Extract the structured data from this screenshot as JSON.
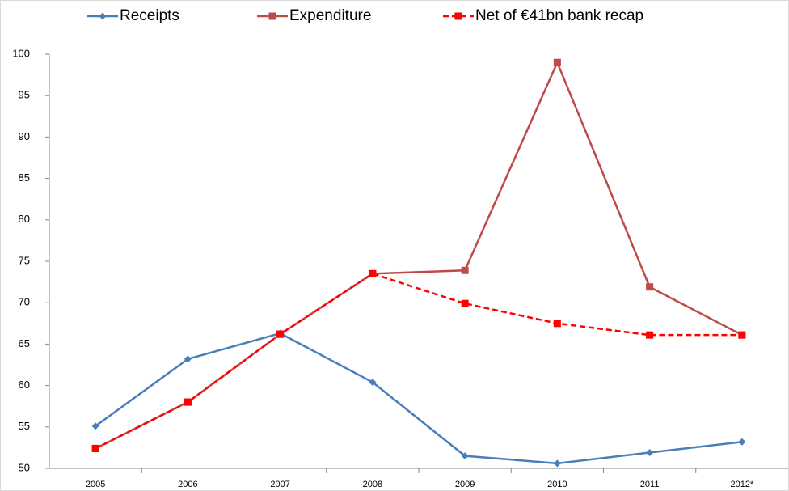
{
  "chart_data": {
    "type": "line",
    "categories": [
      "2005",
      "2006",
      "2007",
      "2008",
      "2009",
      "2010",
      "2011",
      "2012*"
    ],
    "series": [
      {
        "name": "Receipts",
        "color": "#4a7ebb",
        "marker": "diamond",
        "dashed": false,
        "values": [
          55.1,
          63.2,
          66.3,
          60.4,
          51.5,
          50.6,
          51.9,
          53.2
        ]
      },
      {
        "name": "Expenditure",
        "color": "#be4b48",
        "marker": "square",
        "dashed": false,
        "values": [
          52.4,
          58.0,
          66.2,
          73.5,
          73.9,
          99.0,
          71.9,
          66.1
        ]
      },
      {
        "name": "Net of €41bn bank recap",
        "color": "#ff0000",
        "marker": "square",
        "dashed": true,
        "values": [
          52.4,
          58.0,
          66.2,
          73.5,
          69.9,
          67.5,
          66.1,
          66.1
        ]
      }
    ],
    "ylim": [
      50,
      100
    ],
    "yticks": [
      50,
      55,
      60,
      65,
      70,
      75,
      80,
      85,
      90,
      95,
      100
    ],
    "grid": false,
    "legend": "top"
  }
}
